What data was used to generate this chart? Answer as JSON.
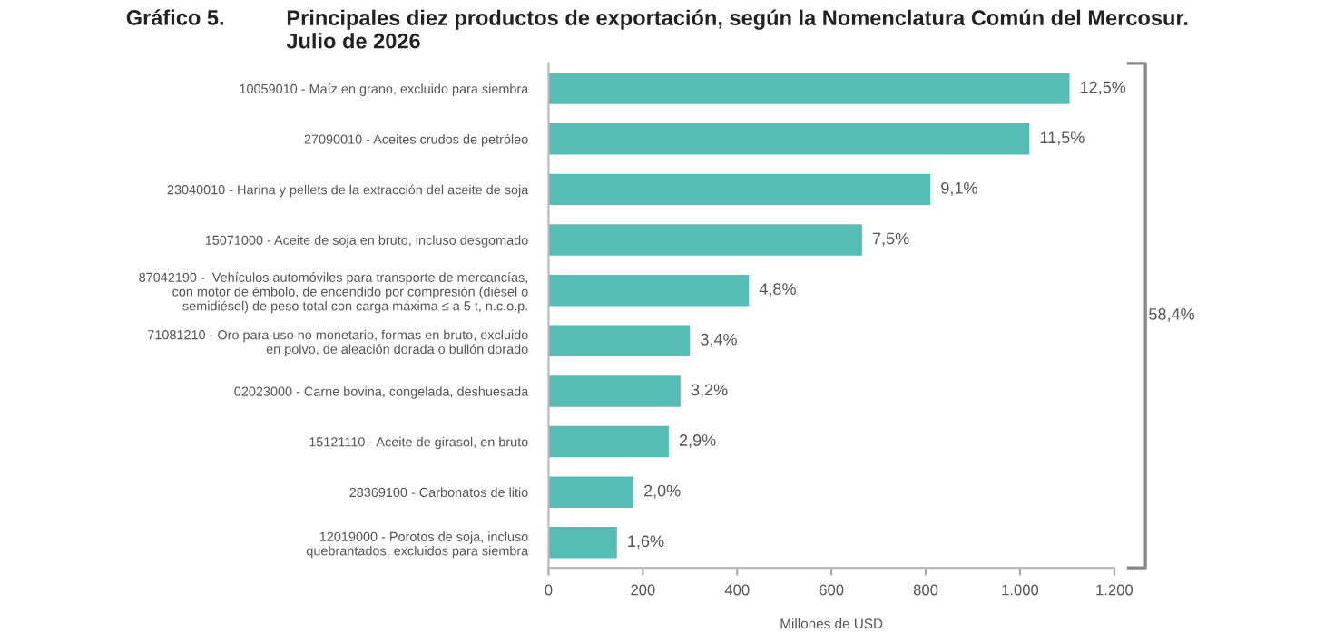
{
  "chart_data": {
    "type": "bar",
    "orientation": "horizontal",
    "title": "Principales diez productos de exportación, según la Nomenclatura Común del Mercosur.\nJulio de 2026",
    "xlabel": "Millones de USD",
    "categories": [
      "10059010 - Maíz en grano, excluido para siembra",
      "27090010 - Aceites crudos de petróleo",
      "23040010 - Harina y pellets de la extracción del aceite de soja",
      "15071000 - Aceite de soja en bruto, incluso desgomado",
      "87042190 -  Vehículos automóviles para transporte de mercancías,\ncon motor de émbolo, de encendido por compresión (diésel o\nsemidiésel) de peso total con carga máxima ≤ a 5 t, n.c.o.p.",
      "71081210 - Oro para uso no monetario, formas en bruto, excluido\nen polvo, de aleación dorada o bullón dorado",
      "02023000 - Carne bovina, congelada, deshuesada",
      "15121110 - Aceite de girasol, en bruto",
      "28369100 - Carbonatos de litio",
      "12019000 - Porotos de soja, incluso\nquebrantados, excluidos para siembra"
    ],
    "values": [
      1105,
      1020,
      810,
      665,
      425,
      300,
      280,
      255,
      180,
      145
    ],
    "color": "#56bdb6",
    "xlim": [
      0,
      1200
    ],
    "xticks": [
      0,
      200,
      400,
      600,
      {
        "value": 800,
        "label": "800"
      },
      {
        "value": 1000,
        "label": "1.000"
      },
      {
        "value": 1200,
        "label": "1.200"
      }
    ],
    "annotations": [
      "Gráfico 5.",
      "58,4%",
      {
        "text": "12,5%",
        "x": 1105,
        "y": "10059010 - Maíz en grano, excluido para siembra"
      },
      {
        "text": "11,5%",
        "x": 1020,
        "y": "27090010 - Aceites crudos de petróleo"
      },
      {
        "text": "9,1%",
        "x": 810,
        "y": "23040010 - Harina y pellets de la extracción del aceite de soja"
      },
      {
        "text": "7,5%",
        "x": 665,
        "y": "15071000 - Aceite de soja en bruto, incluso desgomado"
      },
      {
        "text": "4,8%",
        "x": 425,
        "y": "87042190 -  Vehículos automóviles para transporte de mercancías,\ncon motor de émbolo, de encendido por compresión (diésel o\nsemidiésel) de peso total con carga máxima ≤ a 5 t, n.c.o.p."
      },
      {
        "text": "3,4%",
        "x": 300,
        "y": "71081210 - Oro para uso no monetario, formas en bruto, excluido\nen polvo, de aleación dorada o bullón dorado"
      },
      {
        "text": "3,2%",
        "x": 280,
        "y": "02023000 - Carne bovina, congelada, deshuesada"
      },
      {
        "text": "2,9%",
        "x": 255,
        "y": "15121110 - Aceite de girasol, en bruto"
      },
      {
        "text": "2,0%",
        "x": 180,
        "y": "28369100 - Carbonatos de litio"
      },
      {
        "text": "1,6%",
        "x": 145,
        "y": "12019000 - Porotos de soja, incluso\nquebrantados, excluidos para siembra"
      }
    ],
    "grid": false,
    "legend": false
  }
}
